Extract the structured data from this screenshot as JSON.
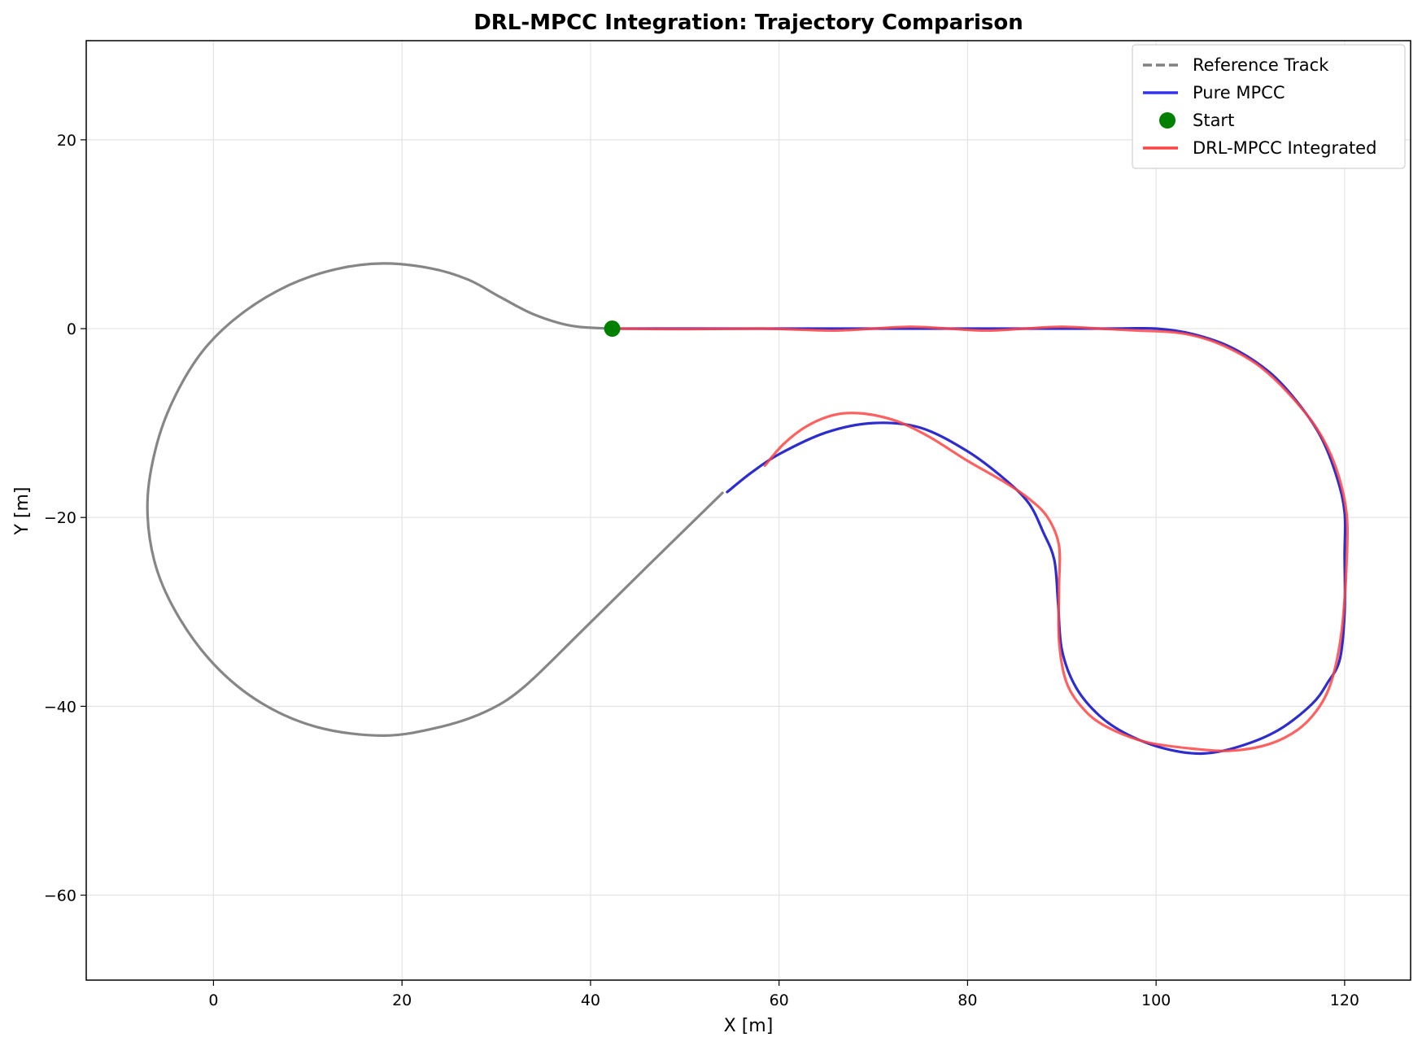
{
  "chart_data": {
    "type": "line",
    "title": "DRL-MPCC Integration: Trajectory Comparison",
    "xlabel": "X [m]",
    "ylabel": "Y [m]",
    "xlim": [
      -13.5,
      127
    ],
    "ylim": [
      -69,
      30.5
    ],
    "xticks": [
      0,
      20,
      40,
      60,
      80,
      100,
      120
    ],
    "yticks": [
      20,
      0,
      -20,
      -40,
      -60
    ],
    "grid": true,
    "legend_position": "top-right",
    "legend": [
      {
        "label": "Reference Track",
        "style": "dashed",
        "color": "#808080"
      },
      {
        "label": "Pure MPCC",
        "style": "solid",
        "color": "#3333ee"
      },
      {
        "label": "Start",
        "style": "marker",
        "color": "#008000"
      },
      {
        "label": "DRL-MPCC Integrated",
        "style": "solid",
        "color": "#ff4444"
      }
    ],
    "series": [
      {
        "name": "Reference Track",
        "color": "#808080",
        "points": [
          [
            42.3,
            0
          ],
          [
            38,
            0.3
          ],
          [
            34,
            1.5
          ],
          [
            30.5,
            3.3
          ],
          [
            27,
            5.2
          ],
          [
            23,
            6.4
          ],
          [
            18,
            6.9
          ],
          [
            13,
            6.3
          ],
          [
            8,
            4.6
          ],
          [
            3,
            1.6
          ],
          [
            -1,
            -2.2
          ],
          [
            -4,
            -7
          ],
          [
            -6,
            -12.2
          ],
          [
            -7,
            -18.3
          ],
          [
            -6.3,
            -24.5
          ],
          [
            -4,
            -30
          ],
          [
            0,
            -35.5
          ],
          [
            5,
            -39.6
          ],
          [
            11,
            -42.2
          ],
          [
            18,
            -43.1
          ],
          [
            24,
            -42.2
          ],
          [
            29,
            -40.5
          ],
          [
            33,
            -37.9
          ],
          [
            39,
            -32.1
          ],
          [
            46,
            -25.2
          ],
          [
            54,
            -17.4
          ]
        ]
      },
      {
        "name": "Pure MPCC",
        "color": "#2222cc",
        "points": [
          [
            42.3,
            0
          ],
          [
            60,
            0
          ],
          [
            80,
            0
          ],
          [
            95,
            0
          ],
          [
            100,
            0
          ],
          [
            104,
            -0.6
          ],
          [
            108,
            -2
          ],
          [
            112,
            -4.6
          ],
          [
            115,
            -7.8
          ],
          [
            117.5,
            -11.5
          ],
          [
            119.2,
            -15.8
          ],
          [
            120,
            -19.5
          ],
          [
            120,
            -24
          ],
          [
            120,
            -30
          ],
          [
            119.5,
            -35
          ],
          [
            118.2,
            -37.5
          ],
          [
            116.5,
            -39.8
          ],
          [
            113,
            -42.5
          ],
          [
            109,
            -44.2
          ],
          [
            105,
            -45
          ],
          [
            101,
            -44.5
          ],
          [
            97,
            -43
          ],
          [
            94,
            -41
          ],
          [
            91.5,
            -38
          ],
          [
            90,
            -34
          ],
          [
            89.6,
            -29
          ],
          [
            89.2,
            -24.5
          ],
          [
            88,
            -21.5
          ],
          [
            86.5,
            -18.5
          ],
          [
            84,
            -16
          ],
          [
            80,
            -13
          ],
          [
            75,
            -10.5
          ],
          [
            70,
            -10
          ],
          [
            65,
            -11
          ],
          [
            60,
            -13.3
          ],
          [
            57,
            -15.3
          ],
          [
            54.5,
            -17.3
          ]
        ]
      },
      {
        "name": "DRL-MPCC Integrated",
        "color": "#ff4444",
        "points": [
          [
            42.3,
            0
          ],
          [
            50,
            -0.05
          ],
          [
            58,
            0
          ],
          [
            62,
            -0.1
          ],
          [
            66,
            -0.2
          ],
          [
            70,
            0
          ],
          [
            74,
            0.2
          ],
          [
            78,
            0
          ],
          [
            82,
            -0.2
          ],
          [
            86,
            0
          ],
          [
            90,
            0.2
          ],
          [
            94,
            0
          ],
          [
            98,
            -0.2
          ],
          [
            102,
            -0.4
          ],
          [
            105,
            -1
          ],
          [
            108,
            -2.2
          ],
          [
            111,
            -4
          ],
          [
            114,
            -6.8
          ],
          [
            117,
            -10.5
          ],
          [
            119,
            -14.5
          ],
          [
            120.2,
            -19.5
          ],
          [
            120.2,
            -25
          ],
          [
            119.8,
            -31
          ],
          [
            119.2,
            -35
          ],
          [
            118.3,
            -38.2
          ],
          [
            117,
            -40.5
          ],
          [
            115,
            -42.5
          ],
          [
            112,
            -44
          ],
          [
            108,
            -44.7
          ],
          [
            104,
            -44.5
          ],
          [
            99,
            -43.8
          ],
          [
            95,
            -42.3
          ],
          [
            92.5,
            -40.5
          ],
          [
            90.5,
            -37.5
          ],
          [
            89.7,
            -33
          ],
          [
            89.7,
            -27.5
          ],
          [
            89.7,
            -23
          ],
          [
            88.5,
            -20
          ],
          [
            86.5,
            -18
          ],
          [
            84,
            -16.3
          ],
          [
            80,
            -14
          ],
          [
            76,
            -11.5
          ],
          [
            72.5,
            -9.8
          ],
          [
            69,
            -9
          ],
          [
            66,
            -9.1
          ],
          [
            63,
            -10.3
          ],
          [
            60.5,
            -12.2
          ],
          [
            58.5,
            -14.5
          ]
        ]
      }
    ],
    "start_point": {
      "name": "Start",
      "x": 42.3,
      "y": 0,
      "color": "#008000"
    }
  }
}
